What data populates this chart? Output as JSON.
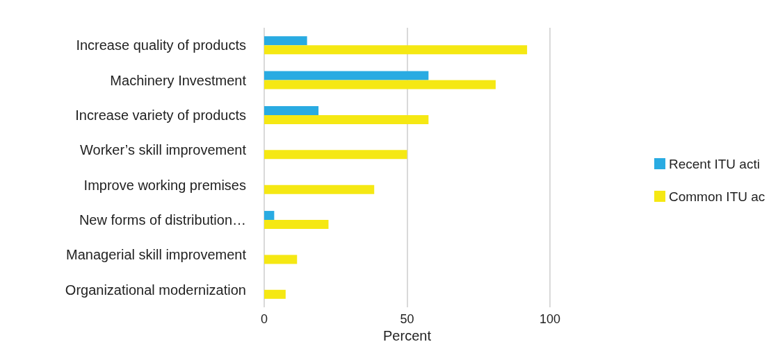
{
  "chart_data": {
    "type": "bar",
    "orientation": "horizontal",
    "xlabel": "Percent",
    "categories": [
      "Increase quality of products",
      "Machinery Investment",
      "Increase variety of products",
      "Worker’s skill improvement",
      "Improve working premises",
      "New forms of distribution…",
      "Managerial skill improvement",
      "Organizational modernization"
    ],
    "series": [
      {
        "name": "Recent ITU acti",
        "color": "#29abe2",
        "values": [
          15,
          57.5,
          19,
          null,
          null,
          3.5,
          null,
          null
        ]
      },
      {
        "name": "Common ITU ac",
        "color": "#f5e813",
        "values": [
          92,
          81,
          57.5,
          50,
          38.5,
          22.5,
          11.5,
          7.5
        ]
      }
    ],
    "xlim": [
      0,
      100
    ],
    "xticks": [
      0,
      50,
      100
    ],
    "grid": "x",
    "legend": "right"
  }
}
